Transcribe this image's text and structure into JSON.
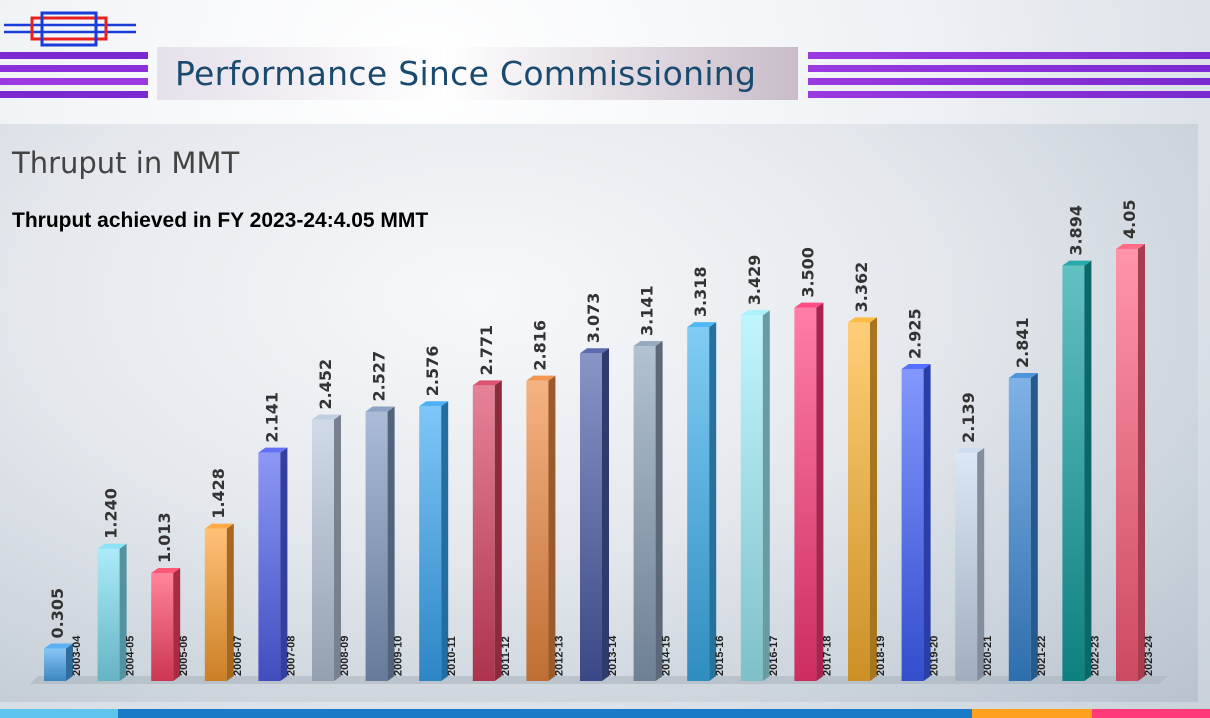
{
  "header": {
    "title": "Performance Since Commissioning"
  },
  "chart_data": {
    "type": "bar",
    "title": "Thruput in MMT",
    "subtitle": "Thruput achieved in FY 2023-24:4.05 MMT",
    "categories": [
      "2003-04",
      "2004-05",
      "2005-06",
      "2006-07",
      "2007-08",
      "2008-09",
      "2009-10",
      "2010-11",
      "2011-12",
      "2012-13",
      "2013-14",
      "2014-15",
      "2015-16",
      "2016-17",
      "2017-18",
      "2018-19",
      "2019-20",
      "2020-21",
      "2021-22",
      "2022-23",
      "2023-24"
    ],
    "values": [
      0.305,
      1.24,
      1.013,
      1.428,
      2.141,
      2.452,
      2.527,
      2.576,
      2.771,
      2.816,
      3.073,
      3.141,
      3.318,
      3.429,
      3.5,
      3.362,
      2.925,
      2.139,
      2.841,
      3.894,
      4.05
    ],
    "value_labels": [
      "0.305",
      "1.240",
      "1.013",
      "1.428",
      "2.141",
      "2.452",
      "2.527",
      "2.576",
      "2.771",
      "2.816",
      "3.073",
      "3.141",
      "3.318",
      "3.429",
      "3.500",
      "3.362",
      "2.925",
      "2.139",
      "2.841",
      "3.894",
      "4.05"
    ],
    "colors": [
      "#4aa8f0",
      "#7fe0f5",
      "#ff4466",
      "#ffa030",
      "#5060f0",
      "#b8c8dc",
      "#7f98c0",
      "#38a8f5",
      "#d84060",
      "#f08a40",
      "#4a5aa8",
      "#8aa0b8",
      "#3cb0f0",
      "#9ff0fa",
      "#ff3877",
      "#ffb430",
      "#4060ff",
      "#c8daf0",
      "#3a8ad8",
      "#10a0a0",
      "#ff5c7a"
    ],
    "ylim": [
      0,
      4.05
    ],
    "grid": false,
    "legend": "none"
  }
}
